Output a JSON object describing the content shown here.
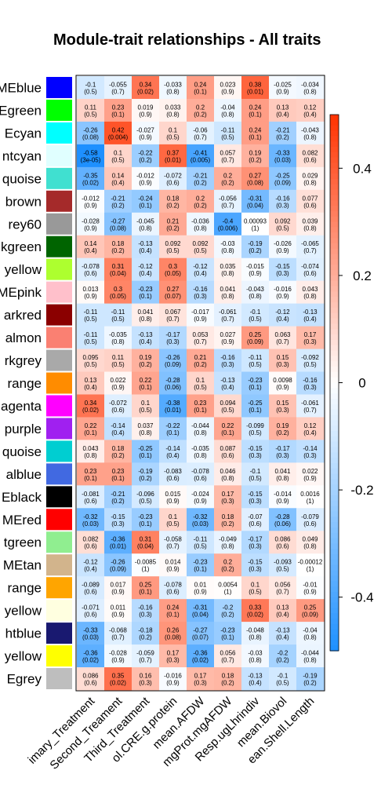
{
  "chart_data": {
    "type": "heatmap",
    "title": "Module-trait relationships - All traits",
    "rows": [
      "MEblue",
      "Egreen",
      "Ecyan",
      "ntcyan",
      "quoise",
      "brown",
      "rey60",
      "kgreen",
      "yellow",
      "MEpink",
      "arkred",
      "almon",
      "rkgrey",
      "range",
      "agenta",
      "purple",
      "quoise",
      "alblue",
      "Eblack",
      "MEred",
      "tgreen",
      "MEtan",
      "range",
      "yellow",
      "htblue",
      "yellow",
      "Egrey"
    ],
    "row_colors": [
      "#0000ff",
      "#00ff00",
      "#00ffff",
      "#e0ffff",
      "#40e0d0",
      "#a52a2a",
      "#999999",
      "#006400",
      "#adff2f",
      "#ffc0cb",
      "#8b0000",
      "#fa8072",
      "#a9a9a9",
      "#ff8c00",
      "#ff00ff",
      "#a020f0",
      "#00ced1",
      "#4169e1",
      "#000000",
      "#ff0000",
      "#90ee90",
      "#d2b48c",
      "#ffa500",
      "#ffffe0",
      "#191970",
      "#ffff00",
      "#bebebe"
    ],
    "columns": [
      "imary_Treatment",
      "Second_Treament",
      "Third_Treatment",
      "ol.CRE.g.protein",
      "mean.AFDW",
      "mgProt.mgAFDW",
      "Resp.ugLhrindiv",
      "mean.Biovol",
      "ean.Shell.Length"
    ],
    "values": [
      [
        -0.1,
        -0.055,
        0.34,
        -0.033,
        0.24,
        0.023,
        0.38,
        -0.025,
        -0.034
      ],
      [
        0.11,
        0.23,
        0.019,
        0.033,
        0.2,
        -0.04,
        0.24,
        0.13,
        0.12
      ],
      [
        -0.26,
        0.42,
        -0.027,
        0.1,
        -0.06,
        -0.11,
        0.24,
        -0.21,
        -0.043
      ],
      [
        -0.58,
        0.1,
        -0.22,
        0.37,
        -0.41,
        0.057,
        0.19,
        -0.33,
        0.082
      ],
      [
        -0.35,
        0.14,
        -0.012,
        -0.072,
        -0.21,
        0.2,
        0.27,
        -0.25,
        0.029
      ],
      [
        -0.012,
        -0.21,
        -0.24,
        0.18,
        0.2,
        -0.056,
        -0.31,
        -0.16,
        0.077
      ],
      [
        -0.028,
        -0.27,
        -0.045,
        0.21,
        -0.036,
        -0.4,
        0.00093,
        0.092,
        0.039
      ],
      [
        0.14,
        0.18,
        -0.13,
        0.092,
        0.092,
        -0.03,
        -0.19,
        -0.026,
        -0.065
      ],
      [
        -0.078,
        0.31,
        -0.12,
        0.3,
        -0.12,
        0.035,
        -0.015,
        -0.15,
        -0.074
      ],
      [
        0.013,
        0.3,
        -0.23,
        0.27,
        -0.16,
        0.041,
        -0.043,
        -0.016,
        0.043
      ],
      [
        -0.11,
        -0.11,
        0.041,
        0.067,
        -0.017,
        -0.061,
        -0.1,
        -0.12,
        -0.13
      ],
      [
        -0.11,
        -0.035,
        -0.13,
        -0.17,
        0.053,
        0.027,
        0.25,
        0.063,
        0.17
      ],
      [
        0.095,
        0.11,
        0.19,
        -0.26,
        0.21,
        -0.16,
        -0.11,
        0.15,
        -0.092
      ],
      [
        0.13,
        0.022,
        0.22,
        -0.28,
        0.1,
        -0.13,
        -0.23,
        0.0098,
        -0.16
      ],
      [
        0.34,
        -0.072,
        0.1,
        -0.38,
        0.23,
        0.094,
        -0.25,
        0.15,
        -0.061
      ],
      [
        0.22,
        -0.14,
        0.037,
        -0.22,
        -0.044,
        0.22,
        -0.099,
        0.19,
        0.12
      ],
      [
        0.043,
        0.18,
        -0.25,
        -0.14,
        -0.035,
        0.087,
        -0.15,
        -0.17,
        -0.14
      ],
      [
        0.23,
        0.23,
        -0.19,
        -0.083,
        -0.078,
        0.046,
        -0.1,
        0.041,
        0.022
      ],
      [
        -0.081,
        -0.21,
        -0.096,
        0.015,
        -0.024,
        0.17,
        -0.15,
        -0.014,
        0.0016
      ],
      [
        -0.32,
        -0.15,
        -0.23,
        0.1,
        -0.32,
        0.18,
        -0.07,
        -0.28,
        -0.079
      ],
      [
        0.082,
        -0.36,
        0.31,
        -0.058,
        -0.11,
        -0.049,
        -0.17,
        0.086,
        0.049
      ],
      [
        -0.12,
        -0.26,
        -0.0085,
        0.014,
        -0.23,
        0.2,
        -0.15,
        -0.093,
        -0.00012
      ],
      [
        -0.089,
        0.017,
        0.25,
        -0.078,
        0.01,
        0.0054,
        0.1,
        0.056,
        -0.01
      ],
      [
        -0.071,
        0.011,
        -0.16,
        0.24,
        -0.31,
        -0.2,
        0.33,
        0.13,
        0.25
      ],
      [
        -0.33,
        -0.068,
        -0.18,
        0.26,
        -0.27,
        -0.23,
        -0.048,
        -0.13,
        -0.04
      ],
      [
        -0.36,
        -0.028,
        -0.059,
        0.17,
        -0.36,
        0.056,
        -0.03,
        -0.2,
        -0.044
      ],
      [
        0.086,
        0.35,
        0.16,
        -0.016,
        0.17,
        0.18,
        -0.13,
        -0.1,
        -0.19
      ]
    ],
    "pvalues": [
      [
        "0.5",
        "0.7",
        "0.02",
        "0.8",
        "0.1",
        "0.9",
        "0.01",
        "0.9",
        "0.8"
      ],
      [
        "0.5",
        "0.1",
        "0.9",
        "0.8",
        "0.2",
        "0.8",
        "0.1",
        "0.4",
        "0.4"
      ],
      [
        "0.08",
        "0.004",
        "0.9",
        "0.5",
        "0.7",
        "0.5",
        "0.1",
        "0.2",
        "0.8"
      ],
      [
        "3e-05",
        "0.5",
        "0.2",
        "0.01",
        "0.005",
        "0.7",
        "0.2",
        "0.03",
        "0.6"
      ],
      [
        "0.02",
        "0.4",
        "0.9",
        "0.6",
        "0.2",
        "0.2",
        "0.08",
        "0.09",
        "0.8"
      ],
      [
        "0.9",
        "0.2",
        "0.1",
        "0.2",
        "0.2",
        "0.7",
        "0.04",
        "0.3",
        "0.6"
      ],
      [
        "0.9",
        "0.08",
        "0.8",
        "0.2",
        "0.8",
        "0.006",
        "1",
        "0.5",
        "0.8"
      ],
      [
        "0.4",
        "0.2",
        "0.4",
        "0.5",
        "0.5",
        "0.8",
        "0.2",
        "0.9",
        "0.7"
      ],
      [
        "0.6",
        "0.04",
        "0.4",
        "0.05",
        "0.4",
        "0.8",
        "0.9",
        "0.3",
        "0.6"
      ],
      [
        "0.9",
        "0.05",
        "0.1",
        "0.07",
        "0.3",
        "0.8",
        "0.8",
        "0.9",
        "0.8"
      ],
      [
        "0.5",
        "0.5",
        "0.8",
        "0.7",
        "0.9",
        "0.7",
        "0.5",
        "0.4",
        "0.4"
      ],
      [
        "0.5",
        "0.8",
        "0.4",
        "0.3",
        "0.7",
        "0.9",
        "0.09",
        "0.7",
        "0.3"
      ],
      [
        "0.5",
        "0.5",
        "0.2",
        "0.09",
        "0.2",
        "0.3",
        "0.5",
        "0.3",
        "0.5"
      ],
      [
        "0.4",
        "0.9",
        "0.1",
        "0.06",
        "0.5",
        "0.4",
        "0.1",
        "0.9",
        "0.3"
      ],
      [
        "0.02",
        "0.6",
        "0.5",
        "0.01",
        "0.1",
        "0.5",
        "0.1",
        "0.3",
        "0.7"
      ],
      [
        "0.1",
        "0.4",
        "0.8",
        "0.1",
        "0.8",
        "0.1",
        "0.5",
        "0.2",
        "0.4"
      ],
      [
        "0.8",
        "0.2",
        "0.1",
        "0.4",
        "0.8",
        "0.6",
        "0.3",
        "0.3",
        "0.3"
      ],
      [
        "0.1",
        "0.1",
        "0.2",
        "0.6",
        "0.6",
        "0.8",
        "0.5",
        "0.8",
        "0.9"
      ],
      [
        "0.6",
        "0.2",
        "0.5",
        "0.9",
        "0.9",
        "0.3",
        "0.3",
        "0.9",
        "1"
      ],
      [
        "0.03",
        "0.3",
        "0.1",
        "0.5",
        "0.03",
        "0.2",
        "0.6",
        "0.06",
        "0.6"
      ],
      [
        "0.6",
        "0.01",
        "0.04",
        "0.7",
        "0.5",
        "0.8",
        "0.3",
        "0.6",
        "0.8"
      ],
      [
        "0.4",
        "0.09",
        "1",
        "0.9",
        "0.1",
        "0.2",
        "0.3",
        "0.5",
        "1"
      ],
      [
        "0.6",
        "0.9",
        "0.1",
        "0.6",
        "0.9",
        "1",
        "0.5",
        "0.7",
        "0.9"
      ],
      [
        "0.6",
        "0.9",
        "0.3",
        "0.1",
        "0.04",
        "0.2",
        "0.02",
        "0.4",
        "0.09"
      ],
      [
        "0.03",
        "0.7",
        "0.2",
        "0.08",
        "0.07",
        "0.1",
        "0.8",
        "0.4",
        "0.8"
      ],
      [
        "0.02",
        "0.9",
        "0.7",
        "0.3",
        "0.02",
        "0.7",
        "0.8",
        "0.2",
        "0.8"
      ],
      [
        "0.6",
        "0.02",
        "0.3",
        "0.9",
        "0.3",
        "0.2",
        "0.4",
        "0.5",
        "0.2"
      ]
    ],
    "colorbar": {
      "range": [
        -0.5,
        0.5
      ],
      "ticks": [
        -0.4,
        -0.2,
        0,
        0.2,
        0.4
      ],
      "tick_labels": [
        "-0.4",
        "-0.2",
        "0",
        "0.2",
        "0.4"
      ]
    },
    "colors": {
      "low": "#1e90ff",
      "mid": "#ffffff",
      "high": "#ff3300"
    }
  }
}
